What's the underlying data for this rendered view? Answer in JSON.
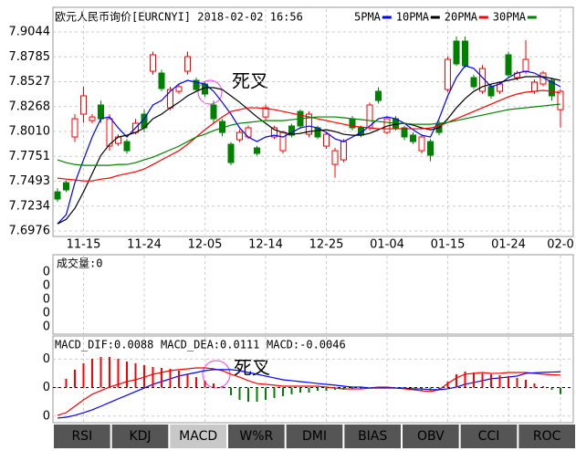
{
  "chart_data": [
    {
      "type": "candlestick",
      "title": "欧元人民币询价[EURCNYI] 2018-02-02 16:56",
      "categories": [
        null,
        null,
        null,
        "11-15",
        null,
        null,
        null,
        null,
        null,
        null,
        "11-24",
        null,
        null,
        null,
        null,
        null,
        null,
        "12-05",
        null,
        null,
        null,
        null,
        null,
        null,
        "12-14",
        null,
        null,
        null,
        null,
        null,
        null,
        "12-25",
        null,
        null,
        null,
        null,
        null,
        null,
        "01-04",
        null,
        null,
        null,
        null,
        null,
        null,
        "01-15",
        null,
        null,
        null,
        null,
        null,
        null,
        "01-24",
        null,
        null,
        null,
        null,
        null,
        "02-0"
      ],
      "open": [
        7.7383,
        7.7478,
        7.7953,
        7.819,
        7.8123,
        7.8285,
        7.7858,
        7.7886,
        7.7905,
        7.8,
        7.819,
        7.8636,
        7.8617,
        7.8256,
        7.8427,
        7.8636,
        7.8541,
        7.8503,
        7.8285,
        7.8114,
        7.7877,
        7.7924,
        7.7953,
        7.7839,
        7.8161,
        7.7953,
        7.781,
        7.8067,
        7.8218,
        7.7981,
        7.8048,
        7.7858,
        7.7668,
        7.7715,
        7.8142,
        7.8048,
        7.8048,
        7.8427,
        7.8,
        7.8142,
        7.8048,
        7.7972,
        7.781,
        7.7905,
        7.8095,
        7.8446,
        7.8949,
        7.8949,
        7.857,
        7.8427,
        7.8475,
        7.8427,
        7.8807,
        7.857,
        7.8636,
        7.8427,
        7.8503,
        7.8541,
        7.8237
      ],
      "high": [
        7.742,
        7.75,
        7.819,
        7.8475,
        7.819,
        7.833,
        7.819,
        7.798,
        7.793,
        7.814,
        7.8237,
        7.884,
        7.865,
        7.8475,
        7.85,
        7.884,
        7.857,
        7.853,
        7.833,
        7.814,
        7.79,
        7.803,
        7.807,
        7.786,
        7.829,
        7.807,
        7.802,
        7.809,
        7.824,
        7.822,
        7.807,
        7.8,
        7.784,
        7.793,
        7.817,
        7.807,
        7.831,
        7.847,
        7.817,
        7.817,
        7.807,
        7.8,
        7.798,
        7.793,
        7.812,
        7.879,
        7.8997,
        7.8997,
        7.86,
        7.87,
        7.85,
        7.853,
        7.884,
        7.864,
        7.896,
        7.855,
        7.864,
        7.857,
        7.845
      ],
      "low": [
        7.728,
        7.738,
        7.79,
        7.81,
        7.8095,
        7.81,
        7.781,
        7.786,
        7.778,
        7.798,
        7.8,
        7.86,
        7.843,
        7.823,
        7.84,
        7.86,
        7.842,
        7.837,
        7.81,
        7.796,
        7.766,
        7.79,
        7.793,
        7.776,
        7.813,
        7.793,
        7.778,
        7.795,
        7.804,
        7.795,
        7.793,
        7.783,
        7.753,
        7.769,
        7.802,
        7.795,
        7.802,
        7.83,
        7.798,
        7.802,
        7.792,
        7.788,
        7.778,
        7.77,
        7.797,
        7.842,
        7.869,
        7.867,
        7.845,
        7.84,
        7.835,
        7.84,
        7.857,
        7.854,
        7.861,
        7.84,
        7.848,
        7.833,
        7.805
      ],
      "close": [
        7.7308,
        7.7403,
        7.8142,
        7.838,
        7.8161,
        7.8142,
        7.8142,
        7.7953,
        7.781,
        7.8095,
        7.8048,
        7.8807,
        7.8456,
        7.8446,
        7.8475,
        7.8788,
        7.8446,
        7.8399,
        7.8142,
        7.8,
        7.7687,
        7.8,
        7.8048,
        7.7782,
        7.8256,
        7.8048,
        7.8,
        7.7972,
        7.8067,
        7.819,
        7.7953,
        7.7981,
        7.781,
        7.7905,
        7.8048,
        7.7972,
        7.8285,
        7.8332,
        7.8142,
        7.8048,
        7.7953,
        7.7905,
        7.7953,
        7.7763,
        7.8,
        7.8759,
        7.8712,
        7.8693,
        7.8475,
        7.8664,
        7.838,
        7.8503,
        7.8598,
        7.8617,
        7.8759,
        7.8522,
        7.8617,
        7.838,
        7.8427
      ],
      "up_color": "#ff0000",
      "down_color": "#008000",
      "series": [
        {
          "name": "5PMA",
          "color": "#0000ff",
          "values": [
            7.705,
            7.7145,
            7.7477,
            7.7715,
            7.7952,
            7.8142,
            7.8161,
            7.8047,
            7.7952,
            7.8047,
            7.8142,
            7.8285,
            7.8332,
            7.8427,
            7.8503,
            7.8541,
            7.8522,
            7.8503,
            7.8427,
            7.8313,
            7.819,
            7.8047,
            7.7952,
            7.7905,
            7.7952,
            7.7971,
            7.7952,
            7.8,
            7.8047,
            7.8066,
            7.8047,
            7.8,
            7.7933,
            7.7905,
            7.7952,
            7.8,
            7.8066,
            7.8142,
            7.8161,
            7.8142,
            7.8095,
            7.8028,
            7.7971,
            7.7952,
            7.8142,
            7.838,
            7.857,
            7.8693,
            7.8665,
            7.857,
            7.8475,
            7.8503,
            7.857,
            7.8617,
            7.8636,
            7.8617,
            7.857,
            7.8522,
            7.8475
          ]
        },
        {
          "name": "10PMA",
          "color": "#000000",
          "values": [
            7.705,
            7.7097,
            7.7211,
            7.7382,
            7.7572,
            7.7762,
            7.7876,
            7.7952,
            7.7971,
            7.8,
            7.8047,
            7.8142,
            7.819,
            7.8256,
            7.8313,
            7.838,
            7.8427,
            7.8465,
            7.8465,
            7.8446,
            7.838,
            7.8313,
            7.8237,
            7.8161,
            7.8095,
            7.8028,
            7.8,
            7.7981,
            7.799,
            7.8009,
            7.8019,
            7.8028,
            7.8009,
            7.7981,
            7.7971,
            7.7971,
            7.799,
            7.8028,
            7.8066,
            7.8085,
            7.8095,
            7.8076,
            7.8047,
            7.8028,
            7.8047,
            7.8142,
            7.8256,
            7.8351,
            7.8427,
            7.8475,
            7.8503,
            7.8522,
            7.8541,
            7.856,
            7.8579,
            7.8579,
            7.8579,
            7.856,
            7.8541
          ]
        },
        {
          "name": "20PMA",
          "color": "#ff0000",
          "values": [
            7.7525,
            7.7515,
            7.7506,
            7.7496,
            7.7496,
            7.7515,
            7.7525,
            7.7553,
            7.7572,
            7.7591,
            7.762,
            7.7667,
            7.7715,
            7.7762,
            7.781,
            7.7876,
            7.7952,
            7.8028,
            7.8095,
            7.8161,
            7.8218,
            7.8237,
            7.8256,
            7.8256,
            7.8247,
            7.8237,
            7.8218,
            7.8199,
            7.818,
            7.8161,
            7.8142,
            7.8123,
            7.8104,
            7.8085,
            7.8066,
            7.8057,
            7.8047,
            7.8038,
            7.8038,
            7.8038,
            7.8038,
            7.8038,
            7.8038,
            7.8047,
            7.8066,
            7.8104,
            7.8142,
            7.818,
            7.8218,
            7.8256,
            7.8294,
            7.8332,
            7.837,
            7.8399,
            7.8418,
            7.8427,
            7.8437,
            7.8427,
            7.8408
          ]
        },
        {
          "name": "30PMA",
          "color": "#008000",
          "values": [
            7.7715,
            7.7686,
            7.7667,
            7.7658,
            7.7658,
            7.7658,
            7.7658,
            7.7667,
            7.7667,
            7.7686,
            7.7715,
            7.7743,
            7.7781,
            7.7819,
            7.7857,
            7.7905,
            7.7952,
            7.7981,
            7.8019,
            7.8047,
            7.8076,
            7.8095,
            7.8104,
            7.8114,
            7.8123,
            7.8123,
            7.8123,
            7.8133,
            7.8142,
            7.8152,
            7.8161,
            7.8161,
            7.8161,
            7.8152,
            7.8142,
            7.8133,
            7.8123,
            7.8114,
            7.8104,
            7.8095,
            7.8095,
            7.8085,
            7.8085,
            7.8085,
            7.8095,
            7.8104,
            7.8123,
            7.8142,
            7.8161,
            7.818,
            7.8199,
            7.8218,
            7.8237,
            7.8247,
            7.8256,
            7.8266,
            7.8275,
            7.8285,
            7.8294
          ]
        }
      ],
      "ylim": [
        7.6976,
        7.9044
      ],
      "yticks": [
        7.6976,
        7.7234,
        7.7493,
        7.7751,
        {
          "value": 7.801,
          "label": "7.8010"
        },
        7.8268,
        7.8527,
        7.8785,
        7.9044
      ],
      "grid": true,
      "annotation": "死叉"
    },
    {
      "type": "volume",
      "title": "成交量:0",
      "ytick_labels": [
        "0",
        "0",
        "0",
        "0",
        "0"
      ]
    },
    {
      "type": "macd",
      "series": [
        {
          "name": "MACD_DIF:0.0088",
          "color": "#ff0000",
          "values": [
            -0.0195,
            -0.0176,
            -0.0131,
            -0.0086,
            -0.0047,
            -0.0022,
            0.0004,
            0.0023,
            0.0042,
            0.0055,
            0.0074,
            0.0094,
            0.0106,
            0.0119,
            0.0126,
            0.0132,
            0.0138,
            0.0138,
            0.0132,
            0.0119,
            0.0094,
            0.0074,
            0.0049,
            0.0029,
            0.0023,
            0.0017,
            0.001,
            0.001,
            0.001,
            0.001,
            0.001,
            0.0004,
            -0.0003,
            -0.0009,
            -0.0009,
            -0.0009,
            -0.0003,
            0.0004,
            0.0004,
            -0.0003,
            -0.0009,
            -0.0015,
            -0.0022,
            -0.0028,
            -0.0015,
            0.0029,
            0.0068,
            0.0094,
            0.01,
            0.0106,
            0.01,
            0.01,
            0.0106,
            0.0106,
            0.0106,
            0.01,
            0.0094,
            0.009,
            0.0088
          ]
        },
        {
          "name": "MACD_DEA:0.0111",
          "color": "#0000ff",
          "values": [
            -0.0214,
            -0.0208,
            -0.0195,
            -0.0176,
            -0.0156,
            -0.0131,
            -0.0105,
            -0.0079,
            -0.0054,
            -0.0028,
            -0.0003,
            0.0023,
            0.0042,
            0.0062,
            0.0081,
            0.0094,
            0.0106,
            0.0119,
            0.0126,
            0.0126,
            0.0126,
            0.0119,
            0.0106,
            0.0094,
            0.0081,
            0.0068,
            0.0055,
            0.0049,
            0.0042,
            0.0036,
            0.0029,
            0.0023,
            0.0017,
            0.001,
            0.0004,
            0.0004,
            -0.0003,
            -0.0003,
            -0.0003,
            -0.0003,
            -0.0003,
            -0.0009,
            -0.0009,
            -0.0015,
            -0.0015,
            -0.0009,
            0.0004,
            0.0023,
            0.0036,
            0.0049,
            0.0062,
            0.0068,
            0.0074,
            0.0081,
            0.01,
            0.0104,
            0.0107,
            0.0109,
            0.0111
          ]
        },
        {
          "name": "MACD:-0.0046",
          "color": "#000000",
          "bars": true,
          "values": [
            0.0003,
            0.0062,
            0.0126,
            0.0171,
            0.0203,
            0.0215,
            0.0215,
            0.0203,
            0.0183,
            0.0171,
            0.0158,
            0.0145,
            0.0138,
            0.0132,
            0.0119,
            0.0094,
            0.0074,
            0.0049,
            0.0029,
            0.001,
            -0.0054,
            -0.0086,
            -0.0099,
            -0.0099,
            -0.0086,
            -0.0073,
            -0.006,
            -0.0047,
            -0.0035,
            -0.0035,
            -0.0022,
            -0.0022,
            -0.0015,
            -0.0015,
            -0.0009,
            -0.0009,
            -0.0009,
            -0.0003,
            -0.0003,
            -0.0003,
            -0.0009,
            -0.0015,
            -0.0022,
            -0.0022,
            -0.0009,
            0.0042,
            0.0094,
            0.0113,
            0.0106,
            0.01,
            0.0094,
            0.0087,
            0.0081,
            0.0068,
            0.0055,
            0.0029,
            0.001,
            -0.0015,
            -0.0046
          ]
        }
      ],
      "up_color": "#ff0000",
      "down_color": "#008000",
      "ylim": [
        -0.024,
        0.026
      ],
      "yticks": [
        {
          "value": 0.02,
          "label": "0"
        },
        {
          "value": 0,
          "label": "0"
        },
        {
          "value": -0.02,
          "label": "0"
        }
      ],
      "annotation": "死叉"
    }
  ],
  "tabs": [
    "RSI",
    "KDJ",
    "MACD",
    "W%R",
    "DMI",
    "BIAS",
    "OBV",
    "CCI",
    "ROC"
  ],
  "selected_tab": 2
}
